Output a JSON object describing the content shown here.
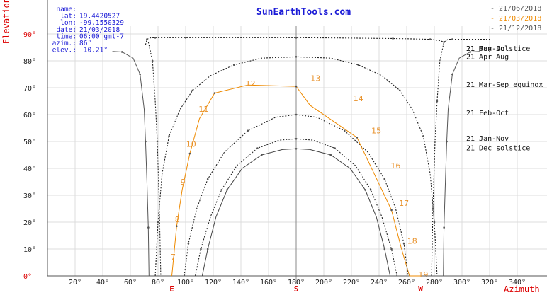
{
  "brand": "SunEarthTools.com",
  "info": [
    {
      "label": "name:",
      "value": ""
    },
    {
      "label": "lat:",
      "value": "19.4420527"
    },
    {
      "label": "lon:",
      "value": "-99.1550329"
    },
    {
      "label": "date:",
      "value": "21/03/2018"
    },
    {
      "label": "time:",
      "value": "06:00 gmt-7"
    },
    {
      "label": "azim.:",
      "value": "86°"
    },
    {
      "label": "elev.:",
      "value": "-10.21°"
    }
  ],
  "legend": [
    {
      "label": "21/06/2018",
      "color": "#555555"
    },
    {
      "label": "21/03/2018",
      "color": "#ee8a00"
    },
    {
      "label": "21/12/2018",
      "color": "#555555"
    }
  ],
  "colors": {
    "axis_label": "#dd0000",
    "accent": "#e8922c",
    "brand": "#1a1ad6",
    "curve": "#222222"
  },
  "chart_data": {
    "type": "line",
    "xlabel": "Azimuth",
    "ylabel": "Elevation",
    "xlim": [
      0,
      360
    ],
    "ylim": [
      0,
      90
    ],
    "x_ticks": [
      "20°",
      "40°",
      "60°",
      "80°",
      "100°",
      "120°",
      "140°",
      "160°",
      "180°",
      "200°",
      "220°",
      "240°",
      "260°",
      "280°",
      "300°",
      "320°",
      "340°"
    ],
    "y_ticks": [
      "0°",
      "10°",
      "20°",
      "30°",
      "40°",
      "50°",
      "60°",
      "70°",
      "80°",
      "90°"
    ],
    "cardinal": [
      {
        "label": "E",
        "az": 90
      },
      {
        "label": "S",
        "az": 180
      },
      {
        "label": "W",
        "az": 270
      }
    ],
    "curve_labels": [
      {
        "text": "21 Jun solstice",
        "el": 84.5
      },
      {
        "text": "21 May-Jul",
        "el": 84.5
      },
      {
        "text": "21 Apr-Aug",
        "el": 81.5
      },
      {
        "text": "21 Mar-Sep equinox",
        "el": 71.0
      },
      {
        "text": "21 Feb-Oct",
        "el": 60.5
      },
      {
        "text": "21 Jan-Nov",
        "el": 51.0
      },
      {
        "text": "21 Dec  solstice",
        "el": 47.5
      }
    ],
    "series": [
      {
        "name": "21/06/2018",
        "style": "solid",
        "color": "#555555",
        "segments": [
          {
            "x": [
              47,
              54,
              62,
              67,
              70,
              71,
              72,
              73,
              73.5
            ],
            "y": [
              83.5,
              83.3,
              81,
              75,
              62,
              50,
              35,
              18,
              0
            ]
          },
          {
            "x": [
              286.5,
              287,
              288,
              289,
              290,
              293,
              298,
              306,
              313
            ],
            "y": [
              0,
              18,
              35,
              50,
              62,
              75,
              81,
              83.3,
              83.5
            ]
          }
        ]
      },
      {
        "name": "21 May-Jul",
        "style": "dotted",
        "color": "#222222",
        "segments": [
          {
            "x": [
              73,
              76,
              78,
              79.5,
              81,
              82
            ],
            "y": [
              87,
              80,
              65,
              50,
              25,
              0
            ]
          },
          {
            "x": [
              278,
              279,
              280.5,
              282,
              284,
              287,
              290,
              293,
              320
            ],
            "y": [
              0,
              25,
              50,
              65,
              80,
              87,
              88,
              88,
              88
            ]
          },
          {
            "x": [
              71,
              72,
              74,
              78,
              84,
              100,
              150,
              180,
              210,
              250,
              260,
              277,
              284,
              287
            ],
            "y": [
              86,
              88,
              88.5,
              88.6,
              88.6,
              88.6,
              88.6,
              88.6,
              88.5,
              88.3,
              88.2,
              88,
              87.5,
              87
            ]
          }
        ]
      },
      {
        "name": "21 Apr-Aug",
        "style": "dotted",
        "color": "#222222",
        "segments": [
          {
            "x": [
              78,
              80,
              83,
              88,
              96,
              105,
              118,
              135,
              155,
              180,
              205,
              225,
              242,
              255,
              264,
              272,
              277,
              280,
              282
            ],
            "y": [
              0,
              20,
              38,
              52,
              62,
              69,
              74.5,
              78.5,
              81,
              81.5,
              81,
              78.5,
              74.5,
              69,
              62,
              52,
              38,
              20,
              0
            ]
          }
        ]
      },
      {
        "name": "21/03/2018",
        "style": "solid",
        "color": "#ee8a00",
        "segments": [
          {
            "x": [
              90,
              93.5,
              97.5,
              103,
              110,
              121,
              145,
              180,
              190,
              224,
              236,
              249,
              256,
              262,
              266.5,
              270
            ],
            "y": [
              0,
              18.5,
              32,
              45.5,
              58.5,
              68,
              71,
              70.5,
              63.5,
              51.5,
              38.5,
              24.5,
              10.5,
              0,
              0,
              0
            ]
          }
        ]
      },
      {
        "name": "21 Feb-Oct",
        "style": "dotted",
        "color": "#222222",
        "segments": [
          {
            "x": [
              99,
              102,
              108,
              116,
              128,
              145,
              165,
              180,
              195,
              215,
              232,
              244,
              252,
              258,
              261
            ],
            "y": [
              0,
              12,
              25,
              36,
              46,
              54,
              59,
              60,
              59,
              54,
              46,
              36,
              25,
              12,
              0
            ]
          }
        ]
      },
      {
        "name": "21 Jan-Nov",
        "style": "dotted",
        "color": "#222222",
        "segments": [
          {
            "x": [
              107,
              111,
              118,
              126,
              137,
              152,
              168,
              180,
              192,
              208,
              223,
              234,
              242,
              249,
              253
            ],
            "y": [
              0,
              10,
              22,
              32,
              41,
              47.5,
              50.5,
              51,
              50.5,
              47.5,
              41,
              32,
              22,
              10,
              0
            ]
          }
        ]
      },
      {
        "name": "21/12/2018",
        "style": "solid",
        "color": "#444444",
        "segments": [
          {
            "x": [
              112,
              116,
              122,
              130,
              141,
              155,
              170,
              180,
              190,
              205,
              219,
              230,
              238,
              244,
              248
            ],
            "y": [
              0,
              10,
              22,
              32,
              40,
              45,
              47,
              47.3,
              47,
              45,
              40,
              32,
              22,
              10,
              0
            ]
          }
        ]
      }
    ],
    "hour_labels": [
      {
        "text": "7",
        "x": 91,
        "y": 6
      },
      {
        "text": "8",
        "x": 94,
        "y": 20
      },
      {
        "text": "9",
        "x": 98,
        "y": 34
      },
      {
        "text": "10",
        "x": 104,
        "y": 48
      },
      {
        "text": "11",
        "x": 113,
        "y": 61
      },
      {
        "text": "12",
        "x": 147,
        "y": 70.5
      },
      {
        "text": "13",
        "x": 194,
        "y": 72.5
      },
      {
        "text": "14",
        "x": 225,
        "y": 65
      },
      {
        "text": "15",
        "x": 238,
        "y": 53
      },
      {
        "text": "16",
        "x": 252,
        "y": 40
      },
      {
        "text": "17",
        "x": 258,
        "y": 26
      },
      {
        "text": "18",
        "x": 264,
        "y": 12
      },
      {
        "text": "19",
        "x": 272,
        "y": -0.5
      }
    ]
  }
}
